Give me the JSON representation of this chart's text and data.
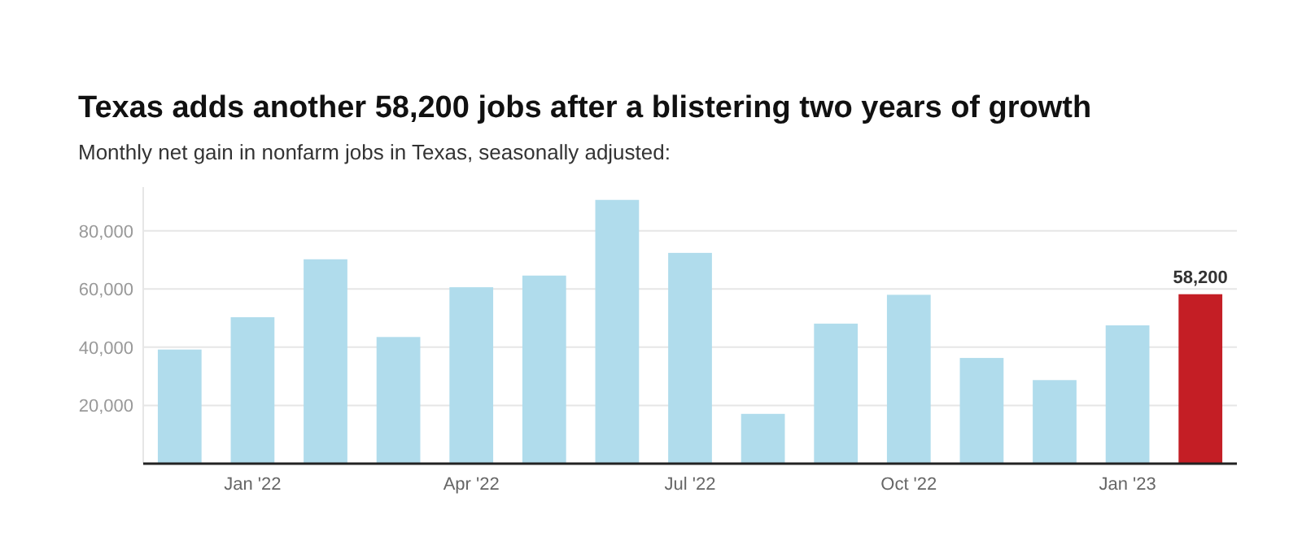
{
  "chart_data": {
    "type": "bar",
    "title": "Texas adds another 58,200 jobs after a blistering two years of growth",
    "subtitle": "Monthly net gain in nonfarm jobs in Texas, seasonally adjusted:",
    "categories": [
      null,
      "Jan '22",
      null,
      null,
      "Apr '22",
      null,
      null,
      "Jul '22",
      null,
      null,
      "Oct '22",
      null,
      null,
      "Jan '23",
      null
    ],
    "values": [
      39200,
      50300,
      70200,
      43500,
      60600,
      64600,
      90600,
      72400,
      17100,
      48100,
      58000,
      36300,
      28700,
      47500,
      58200
    ],
    "colors": [
      "#b0dcec",
      "#b0dcec",
      "#b0dcec",
      "#b0dcec",
      "#b0dcec",
      "#b0dcec",
      "#b0dcec",
      "#b0dcec",
      "#b0dcec",
      "#b0dcec",
      "#b0dcec",
      "#b0dcec",
      "#b0dcec",
      "#b0dcec",
      "#c41e25"
    ],
    "value_labels": [
      null,
      null,
      null,
      null,
      null,
      null,
      null,
      null,
      null,
      null,
      null,
      null,
      null,
      null,
      "58,200"
    ],
    "ylim": [
      0,
      95000
    ],
    "yticks": [
      {
        "value": 20000,
        "label": "20,000"
      },
      {
        "value": 40000,
        "label": "40,000"
      },
      {
        "value": 60000,
        "label": "60,000"
      },
      {
        "value": 80000,
        "label": "80,000"
      }
    ],
    "grid": "y"
  }
}
